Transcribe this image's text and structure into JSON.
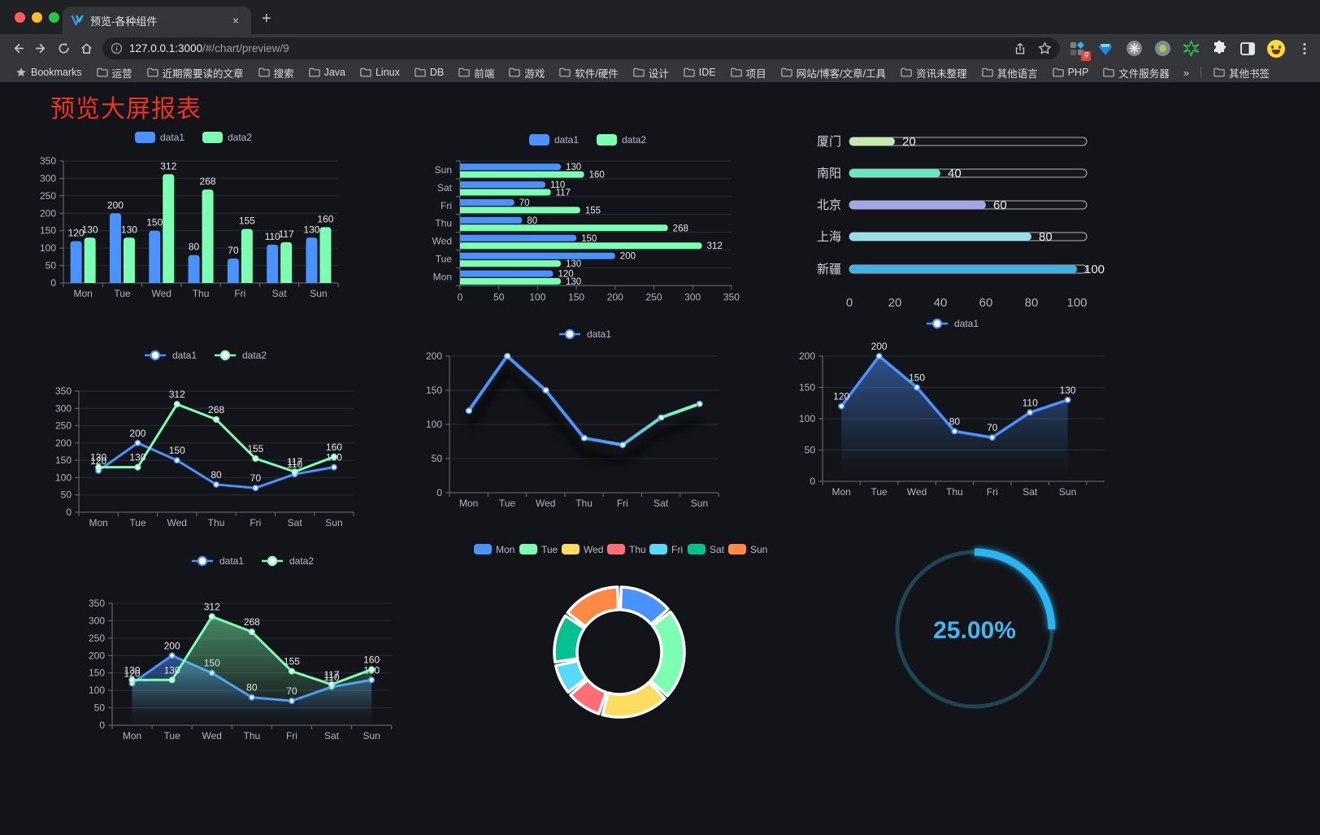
{
  "browser": {
    "tab_title": "预览-各种组件",
    "new_tab_label": "+",
    "close_label": "×",
    "url_host": "127.0.0.1:3000",
    "url_path": "/#/chart/preview/9",
    "extension_badge": "9"
  },
  "bookmarks": {
    "root_label": "Bookmarks",
    "folders": [
      "运营",
      "近期需要读的文章",
      "搜索",
      "Java",
      "Linux",
      "DB",
      "前端",
      "游戏",
      "软件/硬件",
      "设计",
      "IDE",
      "项目",
      "网站/博客/文章/工具",
      "资讯未整理",
      "其他语言",
      "PHP",
      "文件服务器"
    ],
    "overflow_label": "»",
    "other_label": "其他书签"
  },
  "page": {
    "title": "预览大屏报表",
    "title_color": "#ee3421",
    "background": "#131419"
  },
  "chart_data": [
    {
      "id": "c1",
      "type": "bar",
      "orientation": "vertical",
      "categories": [
        "Mon",
        "Tue",
        "Wed",
        "Thu",
        "Fri",
        "Sat",
        "Sun"
      ],
      "series": [
        {
          "name": "data1",
          "color": "#4992ff",
          "values": [
            120,
            200,
            150,
            80,
            70,
            110,
            130
          ]
        },
        {
          "name": "data2",
          "color": "#7cffb2",
          "values": [
            130,
            130,
            312,
            268,
            155,
            117,
            160
          ]
        }
      ],
      "ylim": [
        0,
        350
      ],
      "ystep": 50,
      "legend_position": "top",
      "grid": true,
      "value_labels": true
    },
    {
      "id": "c2",
      "type": "bar",
      "orientation": "horizontal",
      "categories_top_to_bottom": [
        "Sun",
        "Sat",
        "Fri",
        "Thu",
        "Wed",
        "Tue",
        "Mon"
      ],
      "series": [
        {
          "name": "data1",
          "color": "#4992ff",
          "values_for": [
            "Sun",
            "Sat",
            "Fri",
            "Thu",
            "Wed",
            "Tue",
            "Mon"
          ],
          "values": [
            130,
            110,
            70,
            80,
            150,
            200,
            120
          ]
        },
        {
          "name": "data2",
          "color": "#7cffb2",
          "values": [
            160,
            117,
            155,
            268,
            312,
            130,
            130
          ]
        }
      ],
      "xlim": [
        0,
        350
      ],
      "xstep": 50,
      "legend_position": "top",
      "grid": true,
      "value_labels": true
    },
    {
      "id": "c3",
      "type": "bar",
      "subtype": "progress-list",
      "rows": [
        {
          "label": "厦门",
          "value": 20,
          "color": "#c4ebad"
        },
        {
          "label": "南阳",
          "value": 40,
          "color": "#6be6c1"
        },
        {
          "label": "北京",
          "value": 60,
          "color": "#a0a7e6"
        },
        {
          "label": "上海",
          "value": 80,
          "color": "#96dee8"
        },
        {
          "label": "新疆",
          "value": 100,
          "color": "#3fb1e3"
        }
      ],
      "xlim": [
        0,
        100
      ],
      "xticks": [
        0,
        20,
        40,
        60,
        80,
        100
      ],
      "value_labels": true
    },
    {
      "id": "c4",
      "type": "line",
      "categories": [
        "Mon",
        "Tue",
        "Wed",
        "Thu",
        "Fri",
        "Sat",
        "Sun"
      ],
      "series": [
        {
          "name": "data1",
          "color": "#4992ff",
          "values": [
            120,
            200,
            150,
            80,
            70,
            110,
            130
          ]
        },
        {
          "name": "data2",
          "color": "#7cffb2",
          "values": [
            130,
            130,
            312,
            268,
            155,
            117,
            160
          ]
        }
      ],
      "ylim": [
        0,
        350
      ],
      "ystep": 50,
      "legend_position": "top",
      "markers": true,
      "value_labels": true
    },
    {
      "id": "c5",
      "type": "line",
      "categories": [
        "Mon",
        "Tue",
        "Wed",
        "Thu",
        "Fri",
        "Sat",
        "Sun"
      ],
      "series": [
        {
          "name": "data1",
          "color_gradient": [
            "#4992ff",
            "#4992ff",
            "#7cffb2"
          ],
          "values": [
            120,
            200,
            150,
            80,
            70,
            110,
            130
          ]
        }
      ],
      "ylim": [
        0,
        200
      ],
      "ystep": 50,
      "legend_position": "top",
      "markers": true,
      "value_labels": false,
      "shadow": true
    },
    {
      "id": "c6",
      "type": "area",
      "categories": [
        "Mon",
        "Tue",
        "Wed",
        "Thu",
        "Fri",
        "Sat",
        "Sun"
      ],
      "series": [
        {
          "name": "data1",
          "color": "#4992ff",
          "values": [
            120,
            200,
            150,
            80,
            70,
            110,
            130
          ],
          "area": true
        }
      ],
      "ylim": [
        0,
        200
      ],
      "ystep": 50,
      "legend_position": "top",
      "markers": true,
      "value_labels": true
    },
    {
      "id": "c7",
      "type": "area",
      "categories": [
        "Mon",
        "Tue",
        "Wed",
        "Thu",
        "Fri",
        "Sat",
        "Sun"
      ],
      "series": [
        {
          "name": "data1",
          "color": "#4992ff",
          "values": [
            120,
            200,
            150,
            80,
            70,
            110,
            130
          ],
          "area": true
        },
        {
          "name": "data2",
          "color": "#7cffb2",
          "values": [
            130,
            130,
            312,
            268,
            155,
            117,
            160
          ],
          "area": true
        }
      ],
      "ylim": [
        0,
        350
      ],
      "ystep": 50,
      "legend_position": "top",
      "markers": true,
      "value_labels": true
    },
    {
      "id": "c8",
      "type": "pie",
      "subtype": "doughnut",
      "items": [
        {
          "label": "Mon",
          "value": 120,
          "color": "#4992ff"
        },
        {
          "label": "Tue",
          "value": 200,
          "color": "#7cffb2"
        },
        {
          "label": "Wed",
          "value": 150,
          "color": "#fddd60"
        },
        {
          "label": "Thu",
          "value": 80,
          "color": "#ff6e76"
        },
        {
          "label": "Fri",
          "value": 70,
          "color": "#58d9f9"
        },
        {
          "label": "Sat",
          "value": 110,
          "color": "#05c091"
        },
        {
          "label": "Sun",
          "value": 130,
          "color": "#ff8a45"
        }
      ],
      "legend_position": "top",
      "border_color": "#ffffff",
      "rounded_segments": true
    },
    {
      "id": "c9",
      "type": "gauge",
      "subtype": "circular-progress",
      "value": 25,
      "display": "25.00%",
      "color": "#2ab5f2",
      "track_color": "#1d4552",
      "text_color": "#45b5ee"
    }
  ]
}
